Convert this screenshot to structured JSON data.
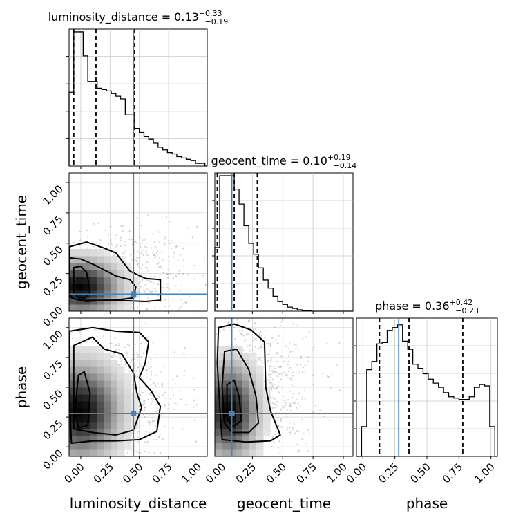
{
  "chart_data": {
    "type": "corner",
    "grid": true,
    "parameters": [
      "luminosity_distance",
      "geocent_time",
      "phase"
    ],
    "truths": [
      0.45,
      0.08,
      0.28
    ],
    "colors": {
      "truth": "#4682b4",
      "hist": "#000000",
      "points": "#9a9a9a"
    },
    "xlim": [
      [
        -0.1,
        1.08
      ],
      [
        -0.06,
        1.08
      ],
      [
        -0.05,
        1.05
      ]
    ],
    "ylim_2d": {
      "geocent_time": [
        -0.06,
        1.08
      ],
      "phase": [
        -0.08,
        1.08
      ]
    },
    "ticks": [
      0.0,
      0.25,
      0.5,
      0.75,
      1.0
    ],
    "tick_labels": [
      "0.00",
      "0.25",
      "0.50",
      "0.75",
      "1.00"
    ],
    "diagonal": [
      {
        "param": "luminosity_distance",
        "title": {
          "main": "luminosity_distance = 0.13",
          "sup": "+0.33",
          "sub": "−0.19"
        },
        "quantiles": [
          -0.06,
          0.13,
          0.46
        ],
        "bins": [
          -0.1,
          -0.06,
          -0.02,
          0.02,
          0.06,
          0.1,
          0.14,
          0.18,
          0.22,
          0.26,
          0.3,
          0.34,
          0.38,
          0.42,
          0.46,
          0.5,
          0.54,
          0.58,
          0.62,
          0.66,
          0.7,
          0.74,
          0.78,
          0.82,
          0.86,
          0.9,
          0.94,
          0.98,
          1.02,
          1.06,
          1.08
        ],
        "counts": [
          0.55,
          1.0,
          1.0,
          0.82,
          0.63,
          0.63,
          0.58,
          0.57,
          0.56,
          0.54,
          0.52,
          0.5,
          0.38,
          0.38,
          0.28,
          0.25,
          0.22,
          0.2,
          0.17,
          0.14,
          0.12,
          0.1,
          0.09,
          0.07,
          0.06,
          0.05,
          0.04,
          0.02,
          0.02,
          0.0
        ]
      },
      {
        "param": "geocent_time",
        "title": {
          "main": "geocent_time = 0.10",
          "sup": "+0.19",
          "sub": "−0.14"
        },
        "quantiles": [
          -0.04,
          0.1,
          0.29
        ],
        "bins": [
          -0.06,
          -0.02,
          0.02,
          0.06,
          0.1,
          0.14,
          0.18,
          0.22,
          0.26,
          0.3,
          0.34,
          0.38,
          0.42,
          0.46,
          0.5,
          0.54,
          0.58,
          0.62,
          0.66,
          0.7,
          0.74,
          0.78,
          0.82,
          0.86,
          0.9,
          0.94,
          0.98,
          1.02,
          1.06,
          1.08
        ],
        "counts": [
          0.47,
          1.0,
          1.0,
          1.0,
          0.9,
          0.79,
          0.63,
          0.5,
          0.42,
          0.32,
          0.23,
          0.17,
          0.11,
          0.07,
          0.05,
          0.03,
          0.02,
          0.01,
          0.005,
          0.003,
          0.0,
          0.0,
          0.0,
          0.0,
          0.0,
          0.0,
          0.0,
          0.0,
          0.0
        ]
      },
      {
        "param": "phase",
        "title": {
          "main": "phase = 0.36",
          "sup": "+0.42",
          "sub": "−0.23"
        },
        "quantiles": [
          0.13,
          0.36,
          0.78
        ],
        "bins": [
          -0.05,
          -0.01,
          0.03,
          0.07,
          0.11,
          0.15,
          0.19,
          0.23,
          0.27,
          0.31,
          0.35,
          0.39,
          0.43,
          0.47,
          0.51,
          0.55,
          0.59,
          0.63,
          0.67,
          0.71,
          0.75,
          0.79,
          0.83,
          0.87,
          0.91,
          0.95,
          0.99,
          1.03,
          1.05
        ],
        "counts": [
          0.0,
          0.22,
          0.64,
          0.7,
          0.83,
          0.84,
          0.93,
          0.95,
          0.97,
          0.85,
          0.79,
          0.68,
          0.65,
          0.61,
          0.57,
          0.54,
          0.51,
          0.47,
          0.44,
          0.43,
          0.42,
          0.42,
          0.44,
          0.51,
          0.53,
          0.52,
          0.22,
          0.0
        ]
      }
    ],
    "panels_2d": [
      {
        "x": "luminosity_distance",
        "y": "geocent_time",
        "density_center": [
          0.0,
          0.14
        ],
        "density_spread": [
          0.2,
          0.14
        ],
        "scatter_center": [
          0.28,
          0.2
        ],
        "scatter_spread": [
          0.33,
          0.22
        ],
        "contours": [
          [
            [
              -0.1,
              0.47
            ],
            [
              0.05,
              0.51
            ],
            [
              0.2,
              0.46
            ],
            [
              0.3,
              0.42
            ],
            [
              0.42,
              0.27
            ],
            [
              0.55,
              0.21
            ],
            [
              0.68,
              0.2
            ],
            [
              0.68,
              0.03
            ],
            [
              0.55,
              0.02
            ],
            [
              0.3,
              0.03
            ],
            [
              0.2,
              0.03
            ],
            [
              0.05,
              0.02
            ],
            [
              -0.05,
              0.04
            ],
            [
              -0.1,
              0.06
            ]
          ],
          [
            [
              -0.1,
              0.38
            ],
            [
              0.0,
              0.37
            ],
            [
              0.12,
              0.32
            ],
            [
              0.3,
              0.23
            ],
            [
              0.42,
              0.2
            ],
            [
              0.47,
              0.14
            ],
            [
              0.45,
              0.05
            ],
            [
              0.28,
              0.03
            ],
            [
              0.12,
              0.03
            ],
            [
              0.0,
              0.03
            ],
            [
              -0.08,
              0.05
            ],
            [
              -0.1,
              0.1
            ]
          ],
          [
            [
              -0.06,
              0.3
            ],
            [
              0.0,
              0.31
            ],
            [
              0.05,
              0.26
            ],
            [
              0.08,
              0.1
            ],
            [
              0.04,
              0.05
            ],
            [
              -0.02,
              0.05
            ],
            [
              -0.06,
              0.1
            ]
          ]
        ]
      },
      {
        "x": "luminosity_distance",
        "y": "phase",
        "density_center": [
          0.0,
          0.3
        ],
        "density_spread": [
          0.2,
          0.24
        ],
        "scatter_center": [
          0.3,
          0.4
        ],
        "scatter_spread": [
          0.3,
          0.28
        ],
        "contours": [
          [
            [
              -0.1,
              0.97
            ],
            [
              0.1,
              1.0
            ],
            [
              0.3,
              0.97
            ],
            [
              0.5,
              0.96
            ],
            [
              0.58,
              0.88
            ],
            [
              0.55,
              0.7
            ],
            [
              0.5,
              0.58
            ],
            [
              0.6,
              0.47
            ],
            [
              0.68,
              0.34
            ],
            [
              0.65,
              0.13
            ],
            [
              0.5,
              0.06
            ],
            [
              0.3,
              0.05
            ],
            [
              0.1,
              0.05
            ],
            [
              -0.08,
              0.03
            ],
            [
              -0.1,
              0.5
            ]
          ],
          [
            [
              -0.06,
              0.85
            ],
            [
              0.1,
              0.92
            ],
            [
              0.2,
              0.82
            ],
            [
              0.35,
              0.78
            ],
            [
              0.45,
              0.62
            ],
            [
              0.48,
              0.45
            ],
            [
              0.52,
              0.33
            ],
            [
              0.45,
              0.14
            ],
            [
              0.3,
              0.1
            ],
            [
              0.1,
              0.12
            ],
            [
              -0.06,
              0.15
            ]
          ],
          [
            [
              -0.02,
              0.6
            ],
            [
              0.03,
              0.63
            ],
            [
              0.08,
              0.45
            ],
            [
              0.06,
              0.18
            ],
            [
              -0.02,
              0.16
            ],
            [
              -0.05,
              0.3
            ]
          ]
        ]
      },
      {
        "x": "geocent_time",
        "y": "phase",
        "density_center": [
          0.06,
          0.3
        ],
        "density_spread": [
          0.14,
          0.24
        ],
        "scatter_center": [
          0.28,
          0.5
        ],
        "scatter_spread": [
          0.24,
          0.32
        ],
        "contours": [
          [
            [
              -0.03,
              1.0
            ],
            [
              0.1,
              1.03
            ],
            [
              0.24,
              0.98
            ],
            [
              0.35,
              0.88
            ],
            [
              0.36,
              0.5
            ],
            [
              0.4,
              0.3
            ],
            [
              0.48,
              0.1
            ],
            [
              0.4,
              0.05
            ],
            [
              0.2,
              0.04
            ],
            [
              0.0,
              0.06
            ],
            [
              -0.02,
              0.35
            ],
            [
              -0.04,
              0.7
            ]
          ],
          [
            [
              0.02,
              0.8
            ],
            [
              0.12,
              0.82
            ],
            [
              0.22,
              0.65
            ],
            [
              0.28,
              0.42
            ],
            [
              0.3,
              0.2
            ],
            [
              0.22,
              0.12
            ],
            [
              0.08,
              0.12
            ],
            [
              0.02,
              0.2
            ],
            [
              0.0,
              0.5
            ]
          ],
          [
            [
              0.04,
              0.52
            ],
            [
              0.1,
              0.56
            ],
            [
              0.14,
              0.42
            ],
            [
              0.16,
              0.22
            ],
            [
              0.09,
              0.17
            ],
            [
              0.04,
              0.24
            ]
          ]
        ]
      }
    ]
  }
}
